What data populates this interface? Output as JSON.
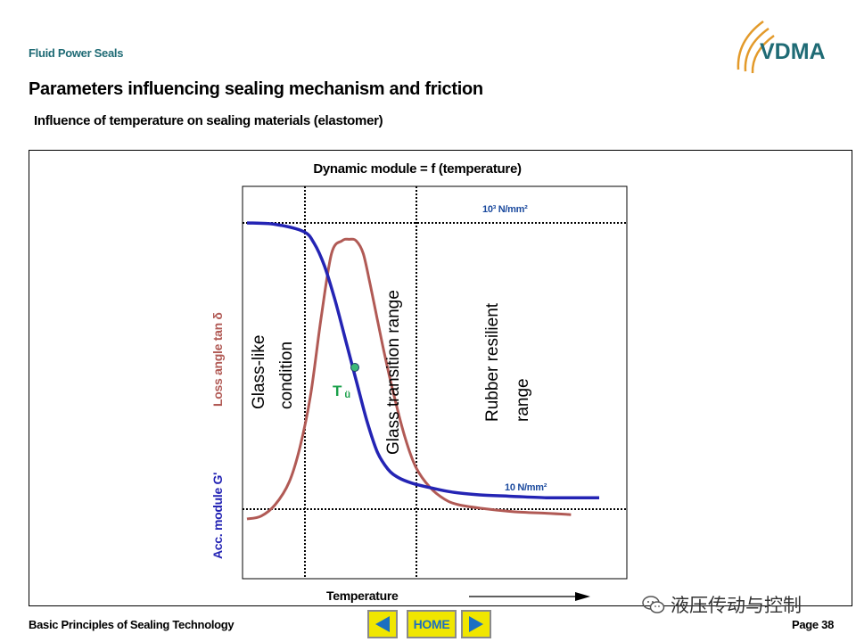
{
  "header": {
    "section": "Fluid Power Seals",
    "title": "Parameters influencing sealing mechanism and friction",
    "subtitle": "Influence of temperature on sealing materials (elastomer)"
  },
  "logo": {
    "text": "VDMA",
    "text_color": "#1f6b75",
    "arc_color": "#e39a2a"
  },
  "chart_data": {
    "type": "line",
    "title": "Dynamic module = f (temperature)",
    "xlabel": "Temperature",
    "ylabel_left": "Acc. module G'",
    "ylabel_loss": "Loss angle tan δ",
    "grid": false,
    "series": [
      {
        "name": "Acc. module G'",
        "color": "#2424b4",
        "x": [
          0,
          0.08,
          0.16,
          0.19,
          0.22,
          0.25,
          0.28,
          0.31,
          0.34,
          0.37,
          0.4,
          0.43,
          0.47,
          0.52,
          0.58,
          0.66,
          0.75,
          0.85,
          0.92,
          1.0
        ],
        "y": [
          1.0,
          0.995,
          0.97,
          0.93,
          0.85,
          0.73,
          0.59,
          0.45,
          0.31,
          0.2,
          0.14,
          0.11,
          0.09,
          0.075,
          0.06,
          0.05,
          0.045,
          0.04,
          0.04,
          0.04
        ]
      },
      {
        "name": "Loss angle tan δ",
        "color": "#b15a55",
        "x": [
          0,
          0.04,
          0.08,
          0.12,
          0.15,
          0.18,
          0.21,
          0.24,
          0.27,
          0.29,
          0.31,
          0.33,
          0.35,
          0.37,
          0.39,
          0.42,
          0.45,
          0.48,
          0.52,
          0.56,
          0.6,
          0.68,
          0.76,
          0.85,
          0.92
        ],
        "y": [
          0.0,
          0.01,
          0.05,
          0.13,
          0.25,
          0.43,
          0.7,
          0.93,
          0.975,
          0.98,
          0.975,
          0.93,
          0.82,
          0.7,
          0.58,
          0.42,
          0.28,
          0.18,
          0.11,
          0.07,
          0.05,
          0.035,
          0.025,
          0.02,
          0.015
        ]
      }
    ],
    "annotations": {
      "upper_modulus": "10³ N/mm²",
      "lower_modulus": "10 N/mm²",
      "transition_point": "T",
      "transition_point_sub": "ü",
      "region_glass_line1": "Glass-like",
      "region_glass_line2": "condition",
      "region_transition": "Glass transition range",
      "region_rubber_line1": "Rubber resilient",
      "region_rubber_line2": "range"
    }
  },
  "footer": {
    "left": "Basic Principles of Sealing Technology",
    "home": "HOME",
    "page": "Page 38",
    "watermark": "液压传动与控制"
  },
  "colors": {
    "nav_button": "#f0e600",
    "nav_arrow": "#1b6fc2",
    "modulus_curve": "#2424b4",
    "loss_curve": "#b15a55"
  }
}
